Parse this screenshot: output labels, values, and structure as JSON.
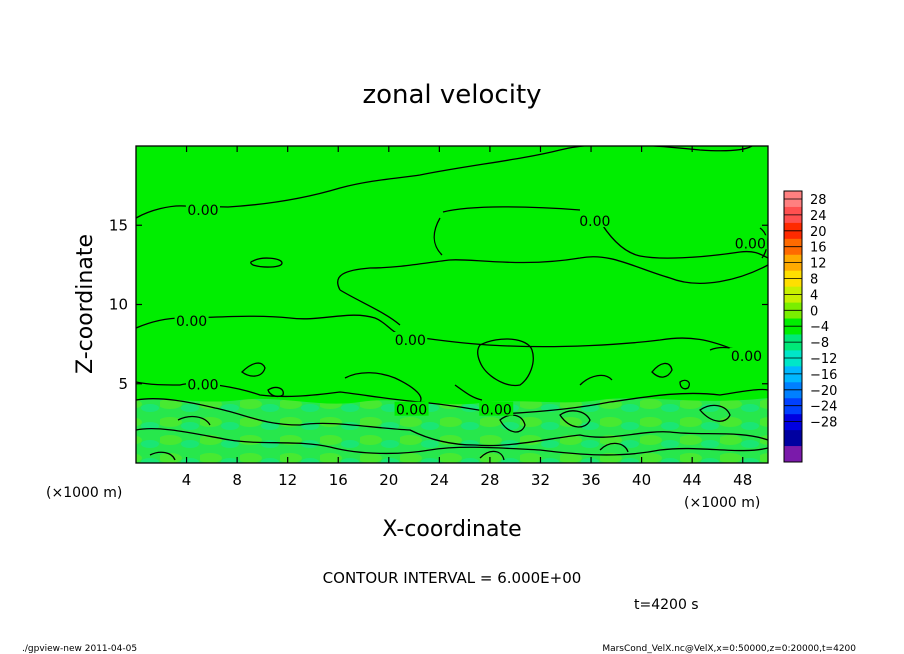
{
  "chart_data": {
    "type": "heatmap",
    "title": "zonal velocity",
    "xlabel": "X-coordinate",
    "ylabel": "Z-coordinate",
    "x_unit_left": "(×1000 m)",
    "x_unit_right": "(×1000 m)",
    "xlim": [
      0,
      50
    ],
    "ylim": [
      0,
      20
    ],
    "x_ticks": [
      4,
      8,
      12,
      16,
      20,
      24,
      28,
      32,
      36,
      40,
      44,
      48
    ],
    "y_ticks": [
      5,
      10,
      15
    ],
    "contour_interval_text": "CONTOUR INTERVAL = 6.000E+00",
    "time_text": "t=4200 s",
    "contour_labels": [
      {
        "text": "0.00",
        "x": 5.3,
        "z": 15.9
      },
      {
        "text": "0.00",
        "x": 4.4,
        "z": 8.9
      },
      {
        "text": "0.00",
        "x": 5.3,
        "z": 4.9
      },
      {
        "text": "0.00",
        "x": 21.7,
        "z": 7.7
      },
      {
        "text": "0.00",
        "x": 21.8,
        "z": 3.3
      },
      {
        "text": "0.00",
        "x": 28.5,
        "z": 3.3
      },
      {
        "text": "0.00",
        "x": 36.3,
        "z": 15.2
      },
      {
        "text": "0.00",
        "x": 48.6,
        "z": 13.8
      },
      {
        "text": "0.00",
        "x": 48.3,
        "z": 6.7
      }
    ],
    "colorbar": {
      "labels": [
        "28",
        "24",
        "20",
        "16",
        "12",
        "8",
        "4",
        "0",
        "−4",
        "−8",
        "−12",
        "−16",
        "−20",
        "−24",
        "−28"
      ],
      "colors": [
        "#ff8080",
        "#ff5050",
        "#ff2a00",
        "#ff6a00",
        "#ffaa00",
        "#ffdf00",
        "#c8f000",
        "#7aee00",
        "#00ee00",
        "#00e878",
        "#00e6c8",
        "#00b8ff",
        "#0080ff",
        "#0040ff",
        "#0000e0",
        "#0000a0",
        "#7a1aaa"
      ]
    }
  },
  "footer": {
    "left": "./gpview-new  2011-04-05",
    "right": "MarsCond_VelX.nc@VelX,x=0:50000,z=0:20000,t=4200"
  }
}
